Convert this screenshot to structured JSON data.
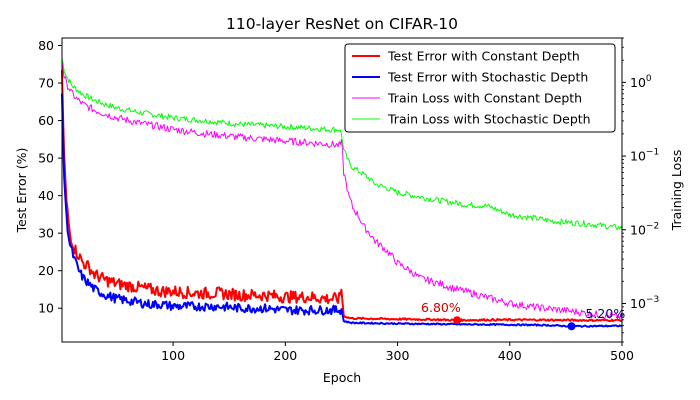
{
  "chart_data": {
    "type": "line",
    "title": "110-layer ResNet on CIFAR-10",
    "xlabel": "Epoch",
    "ylabel": "Test Error (%)",
    "ylabel_right": "Training Loss",
    "xlim": [
      1,
      500
    ],
    "ylim": [
      1,
      82
    ],
    "y2lim": [
      0.0003,
      4
    ],
    "y2_scale": "log",
    "x_ticks": [
      100,
      200,
      300,
      400,
      500
    ],
    "y_ticks": [
      10,
      20,
      30,
      40,
      50,
      60,
      70,
      80
    ],
    "y2_ticks": [
      {
        "value": 0.001,
        "label": "10",
        "exp": "−3"
      },
      {
        "value": 0.01,
        "label": "10",
        "exp": "−2"
      },
      {
        "value": 0.1,
        "label": "10",
        "exp": "−1"
      },
      {
        "value": 1,
        "label": "10",
        "exp": "0"
      }
    ],
    "legend_position": "top-right",
    "grid": false,
    "series": [
      {
        "name": "Test Error with Constant Depth",
        "axis": "left",
        "color": "#ff0000",
        "width": 2,
        "x": [
          1,
          3,
          5,
          8,
          12,
          16,
          20,
          25,
          30,
          40,
          50,
          60,
          70,
          80,
          90,
          100,
          120,
          140,
          160,
          180,
          200,
          220,
          240,
          248,
          250,
          252,
          256,
          260,
          280,
          300,
          330,
          353,
          380,
          420,
          460,
          500
        ],
        "y": [
          72,
          50,
          38,
          30,
          26,
          24,
          22,
          21,
          19,
          17.5,
          16.5,
          16,
          15.5,
          15,
          14.5,
          14.5,
          14,
          14,
          13.5,
          13.5,
          13,
          13,
          12.5,
          12.5,
          15,
          8,
          7.5,
          7.3,
          7.2,
          7.1,
          7,
          6.8,
          6.9,
          6.9,
          6.8,
          6.8
        ],
        "noise": 1.6
      },
      {
        "name": "Test Error with Stochastic Depth",
        "axis": "left",
        "color": "#0000ff",
        "width": 2,
        "x": [
          1,
          3,
          5,
          8,
          12,
          16,
          20,
          25,
          30,
          40,
          50,
          60,
          70,
          80,
          90,
          100,
          120,
          140,
          160,
          180,
          200,
          220,
          240,
          248,
          250,
          252,
          256,
          260,
          280,
          300,
          330,
          360,
          400,
          430,
          455,
          500
        ],
        "y": [
          66,
          45,
          34,
          27,
          23,
          20,
          18,
          16.5,
          15,
          13.5,
          12.5,
          12,
          11.5,
          11,
          11,
          10.5,
          10.5,
          10.5,
          10,
          10,
          9.5,
          9.5,
          9.5,
          9.5,
          9.8,
          6.6,
          6.3,
          6.1,
          6,
          5.9,
          5.8,
          5.7,
          5.6,
          5.5,
          5.2,
          5.3
        ],
        "noise": 1.2
      },
      {
        "name": "Train Loss with Constant Depth",
        "axis": "right",
        "color": "#ff00ff",
        "width": 1,
        "x": [
          1,
          3,
          5,
          10,
          15,
          20,
          30,
          40,
          50,
          70,
          100,
          130,
          160,
          200,
          240,
          248,
          250,
          252,
          256,
          260,
          270,
          280,
          300,
          320,
          350,
          380,
          400,
          420,
          450,
          480,
          500
        ],
        "y": [
          1.9,
          1.2,
          0.95,
          0.7,
          0.58,
          0.5,
          0.42,
          0.37,
          0.33,
          0.28,
          0.23,
          0.2,
          0.18,
          0.16,
          0.145,
          0.14,
          0.15,
          0.06,
          0.03,
          0.02,
          0.011,
          0.007,
          0.0035,
          0.0022,
          0.0016,
          0.0012,
          0.001,
          0.0009,
          0.0008,
          0.0007,
          0.00065
        ],
        "noise": 0.1
      },
      {
        "name": "Train Loss with Stochastic Depth",
        "axis": "right",
        "color": "#00ff00",
        "width": 1,
        "x": [
          1,
          3,
          5,
          10,
          15,
          20,
          30,
          40,
          50,
          70,
          100,
          130,
          160,
          200,
          240,
          248,
          250,
          252,
          256,
          260,
          280,
          300,
          330,
          360,
          380,
          400,
          440,
          470,
          500
        ],
        "y": [
          2.1,
          1.5,
          1.2,
          0.9,
          0.78,
          0.68,
          0.57,
          0.5,
          0.45,
          0.39,
          0.33,
          0.3,
          0.27,
          0.25,
          0.23,
          0.23,
          0.2,
          0.12,
          0.085,
          0.07,
          0.042,
          0.032,
          0.026,
          0.022,
          0.021,
          0.016,
          0.013,
          0.012,
          0.0105
        ],
        "noise": 0.08
      }
    ],
    "annotations": [
      {
        "text": "6.80%",
        "x": 353,
        "y": 6.8,
        "color": "#cc0000",
        "dot_color": "#ff0000"
      },
      {
        "text": "5.20%",
        "x": 455,
        "y": 5.2,
        "color": "#000080",
        "dot_color": "#0000ff"
      }
    ]
  }
}
